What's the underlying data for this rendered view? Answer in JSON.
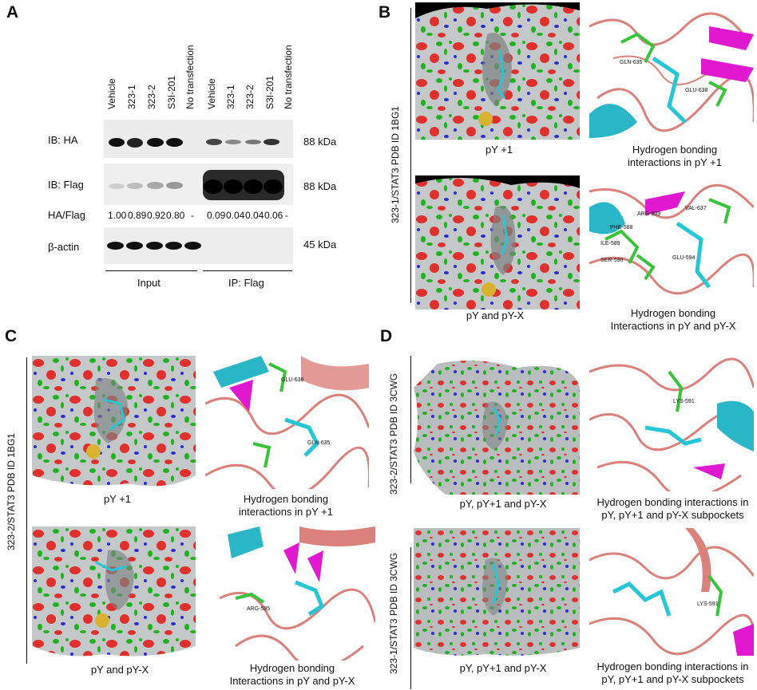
{
  "panels": {
    "A": {
      "letter": "A",
      "lanes": [
        "Vehicle",
        "323-1",
        "323-2",
        "S3I-201",
        "No transfection",
        "Vehicle",
        "323-1",
        "323-2",
        "S3I-201",
        "No transfection"
      ],
      "rows": [
        {
          "label": "IB: HA",
          "kda": "88 kDa"
        },
        {
          "label": "IB: Flag",
          "kda": "88 kDa"
        },
        {
          "label": "β-actin",
          "kda": "45 kDa"
        }
      ],
      "ratio_label": "HA/Flag",
      "ratios": [
        "1.00",
        "0.89",
        "0.92",
        "0.80",
        "-",
        "0.09",
        "0.04",
        "0.04",
        "0.06",
        "-"
      ],
      "groups": [
        "Input",
        "IP: Flag"
      ]
    },
    "B": {
      "letter": "B",
      "side_label": "323-1/STAT3 PDB ID 1BG1",
      "captions": [
        "pY +1",
        "Hydrogen bonding\ninteractions in pY +1",
        "pY and pY-X",
        "Hydrogen bonding\nInteractions in pY and pY-X"
      ],
      "residues_top": [
        "GLN-635",
        "GLU-638"
      ],
      "residues_bottom": [
        "VAL-637",
        "ARG-609",
        "PHE-588",
        "ILE-589",
        "SER-590",
        "GLU-594"
      ]
    },
    "C": {
      "letter": "C",
      "side_label": "323-2/STAT3 PDB ID 1BG1",
      "captions": [
        "pY +1",
        "Hydrogen bonding\ninteractions in pY +1",
        "pY and pY-X",
        "Hydrogen bonding\nInteractions in pY and pY-X"
      ],
      "residues_top": [
        "GLU-638",
        "GLN-635"
      ],
      "residues_bottom": [
        "ARG-595"
      ]
    },
    "D": {
      "letter": "D",
      "side_label_top": "323-2/STAT3 PDB ID 3CWG",
      "side_label_bottom": "323-1/STAT3 PDB ID 3CWG",
      "captions": [
        "pY, pY+1 and pY-X",
        "Hydrogen bonding interactions in\npY, pY+1 and pY-X subpockets",
        "pY, pY+1 and pY-X",
        "Hydrogen bonding interactions in\npY, pY+1 and pY-X subpockets"
      ],
      "residues_top": [
        "LYS-591"
      ],
      "residues_bottom": [
        "LYS-591"
      ]
    }
  },
  "colors": {
    "surface_grey": "#9aa0a0",
    "surface_red": "#e0302e",
    "surface_green": "#1fb21f",
    "surface_blue": "#2a2ad0",
    "ligand_cyan": "#27c6d6",
    "ribbon_salmon": "#d9817a",
    "helix_cyan": "#2bb6c8",
    "sheet_magenta": "#e018d0",
    "stick_green": "#39c339"
  }
}
